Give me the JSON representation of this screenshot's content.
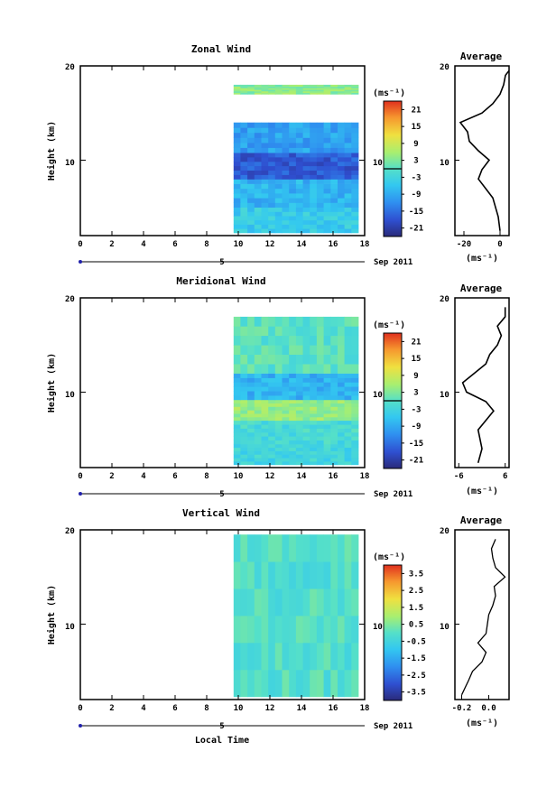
{
  "figure": {
    "x_axis_label": "Local Time",
    "date_label": "Sep 2011",
    "day_marker": "5",
    "x_ticks": [
      "0",
      "2",
      "4",
      "6",
      "8",
      "10",
      "12",
      "14",
      "16",
      "18"
    ],
    "y_ticks": [
      "10",
      "20"
    ],
    "y_label": "Height (km)",
    "colorbar_unit": "(ms⁻¹)"
  },
  "chart_data": [
    {
      "type": "heatmap",
      "title": "Zonal Wind",
      "xlabel": "Local Time",
      "ylabel": "Height (km)",
      "xlim": [
        0,
        18
      ],
      "ylim": [
        2,
        20
      ],
      "data_time_range": [
        9.7,
        17.6
      ],
      "colorbar": {
        "label": "(ms⁻¹)",
        "ticks": [
          21,
          15,
          9,
          3,
          -3,
          -9,
          -15,
          -21
        ],
        "range": [
          -24,
          24
        ]
      },
      "profiles": [
        {
          "height_range": [
            2.3,
            5.0
          ],
          "value": -5
        },
        {
          "height_range": [
            5.0,
            8.0
          ],
          "value": -8
        },
        {
          "height_range": [
            8.0,
            10.8
          ],
          "value": -17
        },
        {
          "height_range": [
            10.8,
            14.0
          ],
          "value": -10
        },
        {
          "height_range": [
            17.0,
            18.0
          ],
          "value": 4
        }
      ],
      "average_profile": {
        "title": "Average",
        "xlabel": "(ms⁻¹)",
        "x_ticks": [
          "-20",
          "0"
        ],
        "xlim": [
          -25,
          5
        ],
        "height": [
          2.5,
          4,
          6,
          7,
          8,
          9,
          10,
          11,
          12,
          13,
          14,
          15,
          16,
          17,
          18,
          19,
          19.5
        ],
        "value": [
          0,
          -1,
          -4,
          -8,
          -12,
          -10,
          -6,
          -12,
          -17,
          -18,
          -22,
          -10,
          -4,
          0,
          2,
          3,
          5
        ]
      }
    },
    {
      "type": "heatmap",
      "title": "Meridional Wind",
      "xlabel": "Local Time",
      "ylabel": "Height (km)",
      "xlim": [
        0,
        18
      ],
      "ylim": [
        2,
        20
      ],
      "data_time_range": [
        9.7,
        17.6
      ],
      "colorbar": {
        "label": "(ms⁻¹)",
        "ticks": [
          21,
          15,
          9,
          3,
          -3,
          -9,
          -15,
          -21
        ],
        "range": [
          -24,
          24
        ]
      },
      "profiles": [
        {
          "height_range": [
            2.3,
            4.5
          ],
          "value": -3
        },
        {
          "height_range": [
            4.5,
            7.0
          ],
          "value": -2
        },
        {
          "height_range": [
            7.0,
            9.2
          ],
          "value": 5
        },
        {
          "height_range": [
            9.2,
            12.0
          ],
          "value": -8
        },
        {
          "height_range": [
            12.0,
            18.0
          ],
          "value": 0
        }
      ],
      "average_profile": {
        "title": "Average",
        "xlabel": "(ms⁻¹)",
        "x_ticks": [
          "-6",
          "6"
        ],
        "xlim": [
          -7,
          7
        ],
        "height": [
          2.5,
          4,
          6,
          7,
          8,
          9,
          10,
          11,
          12,
          13,
          14,
          15,
          16,
          17,
          18,
          19
        ],
        "value": [
          -1,
          0,
          -1,
          1,
          3,
          1,
          -4,
          -5,
          -2,
          1,
          2,
          4,
          5,
          4,
          6,
          6
        ]
      }
    },
    {
      "type": "heatmap",
      "title": "Vertical Wind",
      "xlabel": "Local Time",
      "ylabel": "Height (km)",
      "xlim": [
        0,
        18
      ],
      "ylim": [
        2,
        20
      ],
      "data_time_range": [
        9.7,
        17.6
      ],
      "colorbar": {
        "label": "(ms⁻¹)",
        "ticks": [
          3.5,
          2.5,
          1.5,
          0.5,
          -0.5,
          -1.5,
          -2.5,
          -3.5
        ],
        "range": [
          -4,
          4
        ]
      },
      "profiles": [
        {
          "height_range": [
            2.3,
            19.5
          ],
          "value": -0.1
        }
      ],
      "average_profile": {
        "title": "Average",
        "xlabel": "(ms⁻¹)",
        "x_ticks": [
          "-0.2",
          "0.0"
        ],
        "xlim": [
          -0.25,
          0.15
        ],
        "height": [
          2.5,
          4,
          5,
          6,
          7,
          8,
          9,
          10,
          11,
          12,
          13,
          14,
          15,
          16,
          17,
          18,
          19
        ],
        "value": [
          -0.2,
          -0.15,
          -0.12,
          -0.05,
          -0.02,
          -0.08,
          -0.02,
          -0.01,
          0.0,
          0.03,
          0.05,
          0.04,
          0.12,
          0.05,
          0.03,
          0.02,
          0.05
        ]
      }
    }
  ]
}
